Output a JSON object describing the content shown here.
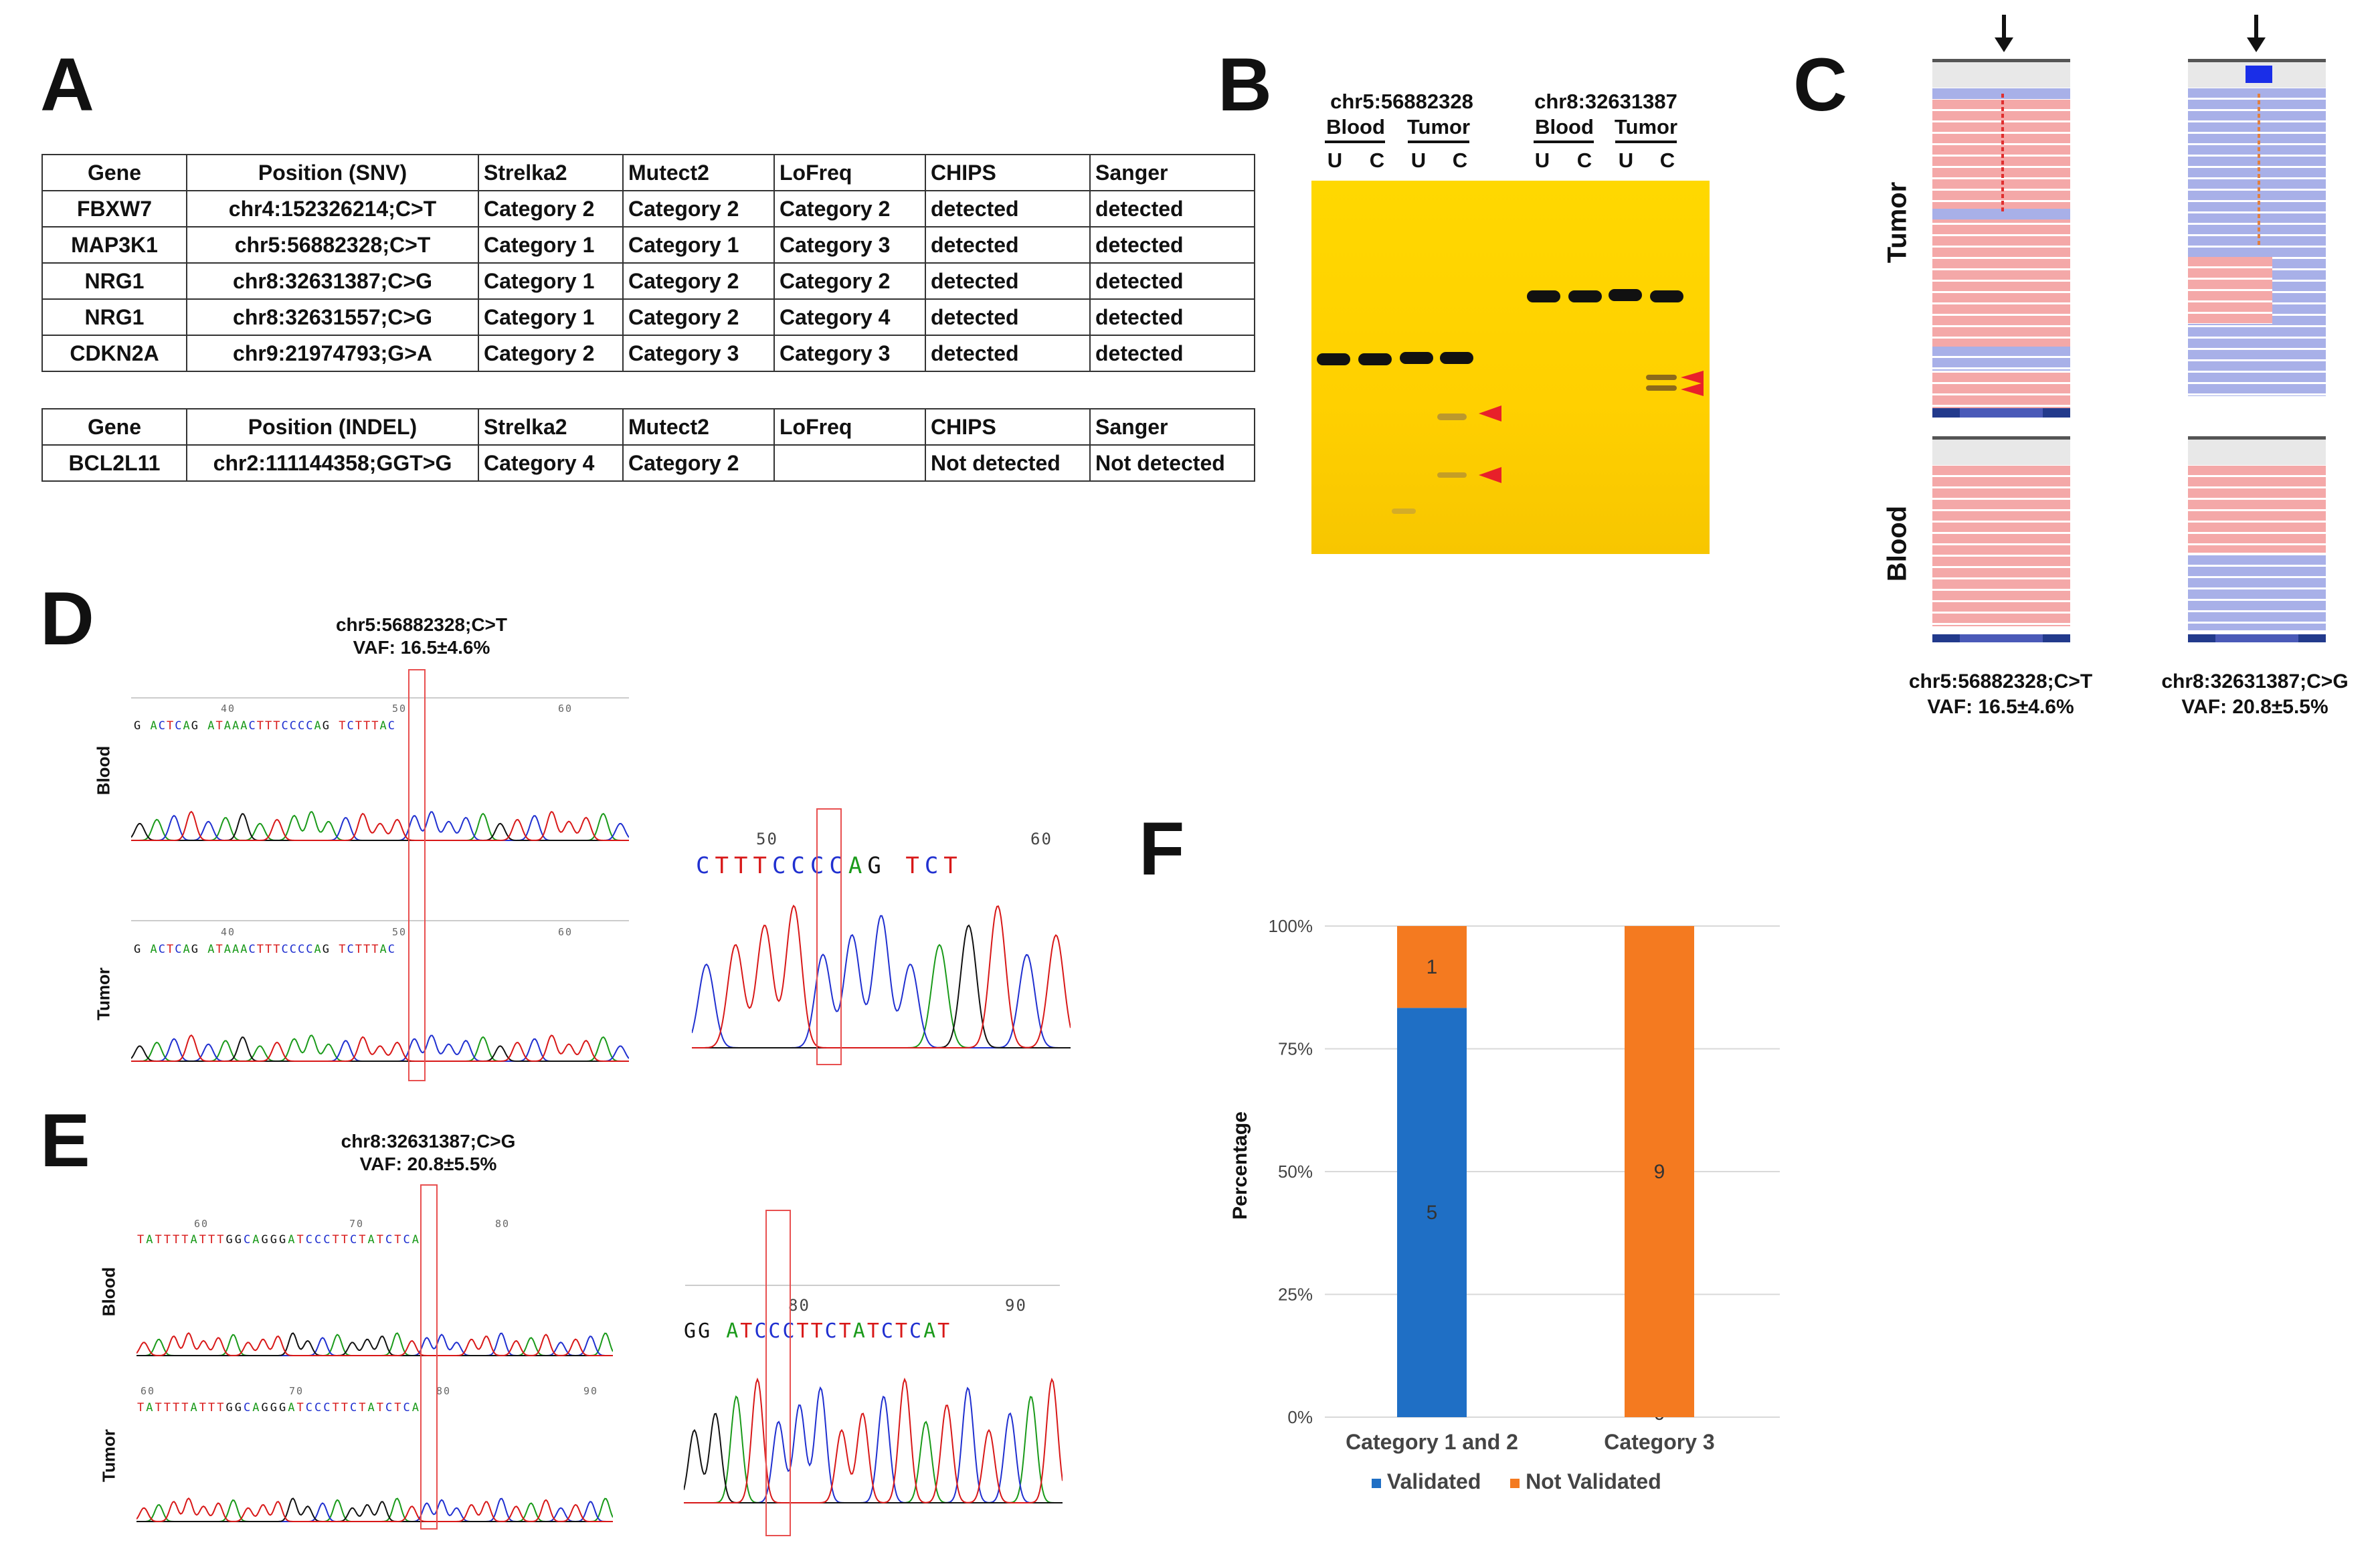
{
  "panels": {
    "A": "A",
    "B": "B",
    "C": "C",
    "D": "D",
    "E": "E",
    "F": "F"
  },
  "tableA": {
    "snv_header": [
      "Gene",
      "Position (SNV)",
      "Strelka2",
      "Mutect2",
      "LoFreq",
      "CHIPS",
      "Sanger"
    ],
    "snv_rows": [
      [
        "FBXW7",
        "chr4:152326214;C>T",
        "Category 2",
        "Category 2",
        "Category 2",
        "detected",
        "detected"
      ],
      [
        "MAP3K1",
        "chr5:56882328;C>T",
        "Category 1",
        "Category 1",
        "Category 3",
        "detected",
        "detected"
      ],
      [
        "NRG1",
        "chr8:32631387;C>G",
        "Category 1",
        "Category 2",
        "Category 2",
        "detected",
        "detected"
      ],
      [
        "NRG1",
        "chr8:32631557;C>G",
        "Category 1",
        "Category 2",
        "Category 4",
        "detected",
        "detected"
      ],
      [
        "CDKN2A",
        "chr9:21974793;G>A",
        "Category 2",
        "Category 3",
        "Category 3",
        "detected",
        "detected"
      ]
    ],
    "indel_header": [
      "Gene",
      "Position (INDEL)",
      "Strelka2",
      "Mutect2",
      "LoFreq",
      "CHIPS",
      "Sanger"
    ],
    "indel_rows": [
      [
        "BCL2L11",
        "chr2:111144358;GGT>G",
        "Category 4",
        "Category 2",
        "",
        "Not detected",
        "Not detected"
      ]
    ]
  },
  "gel": {
    "left_title": "chr5:56882328",
    "right_title": "chr8:32631387",
    "blood": "Blood",
    "tumor": "Tumor",
    "u": "U",
    "c": "C"
  },
  "igv": {
    "tumor": "Tumor",
    "blood": "Blood",
    "left_caption": "chr5:56882328;C>T",
    "left_vaf": "VAF: 16.5±4.6%",
    "right_caption": "chr8:32631387;C>G",
    "right_vaf": "VAF: 20.8±5.5%"
  },
  "panelD": {
    "title": "chr5:56882328;C>T",
    "vaf": "VAF: 16.5±4.6%",
    "blood": "Blood",
    "tumor": "Tumor",
    "seq": "G ACTCAG ATAAACTTTCCCCAG TCTTTAC",
    "ticks": [
      "40",
      "50",
      "60"
    ],
    "zoom_seq": "CTTTCCCCAG TCT",
    "zoom_ticks": [
      "50",
      "60"
    ]
  },
  "panelE": {
    "title": "chr8:32631387;C>G",
    "vaf": "VAF: 20.8±5.5%",
    "blood": "Blood",
    "tumor": "Tumor",
    "seq": "TATTTTATTTGGCAGGGATCCCTTCTATCTCA",
    "ticks_blood": [
      "60",
      "70",
      "80"
    ],
    "ticks_tumor": [
      "60",
      "70",
      "80",
      "90"
    ],
    "zoom_seq": "GG ATCCCTTCTATCTCAT",
    "zoom_ticks": [
      "80",
      "90"
    ]
  },
  "chart_data": {
    "type": "bar",
    "stacked": true,
    "categories": [
      "Category 1 and 2",
      "Category 3"
    ],
    "series": [
      {
        "name": "Validated",
        "values": [
          5,
          0
        ],
        "color": "#1f6fc5"
      },
      {
        "name": "Not Validated",
        "values": [
          1,
          9
        ],
        "color": "#f47a20"
      }
    ],
    "ylabel": "Percentage",
    "yticks": [
      "0%",
      "25%",
      "50%",
      "75%",
      "100%"
    ],
    "ylim": [
      0,
      100
    ],
    "legend": "bottom"
  }
}
